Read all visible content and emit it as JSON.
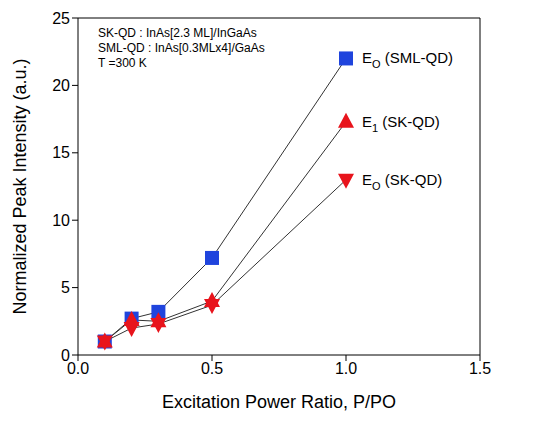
{
  "chart_data": {
    "type": "line",
    "annotations": [
      "SK-QD : InAs[2.3 ML]/InGaAs",
      "SML-QD : InAs[0.3MLx4]/GaAs",
      "T =300 K"
    ],
    "x_label": "Excitation Power Ratio, P/PO",
    "y_label": "Normalized Peak Intensity (a.u.)",
    "xlim": [
      0,
      1.5
    ],
    "xticks": [
      {
        "value": 0,
        "label": "0.0"
      },
      {
        "value": 0.5,
        "label": "0.5"
      },
      {
        "value": 1,
        "label": "1.0"
      },
      {
        "value": 1.5,
        "label": "1.5"
      }
    ],
    "ylim": [
      0,
      25
    ],
    "yticks": [
      0,
      5,
      10,
      15,
      20,
      25
    ],
    "grid": false,
    "x": [
      0.1,
      0.2,
      0.3,
      0.5,
      1.0
    ],
    "series": [
      {
        "name": "EO (SML-QD)",
        "color": "#1f44dd",
        "marker": "square",
        "line_style": "solid",
        "values": [
          1,
          2.7,
          3.2,
          7.2,
          22
        ]
      },
      {
        "name": "E1 (SK-QD)",
        "color": "#e8141c",
        "marker": "triangle-up",
        "line_style": "solid",
        "values": [
          1,
          2.6,
          2.5,
          4.0,
          17.3
        ]
      },
      {
        "name": "EO (SK-QD)",
        "color": "#e8141c",
        "marker": "triangle-down",
        "line_style": "solid",
        "values": [
          1,
          2.0,
          2.3,
          3.7,
          13
        ]
      }
    ]
  }
}
